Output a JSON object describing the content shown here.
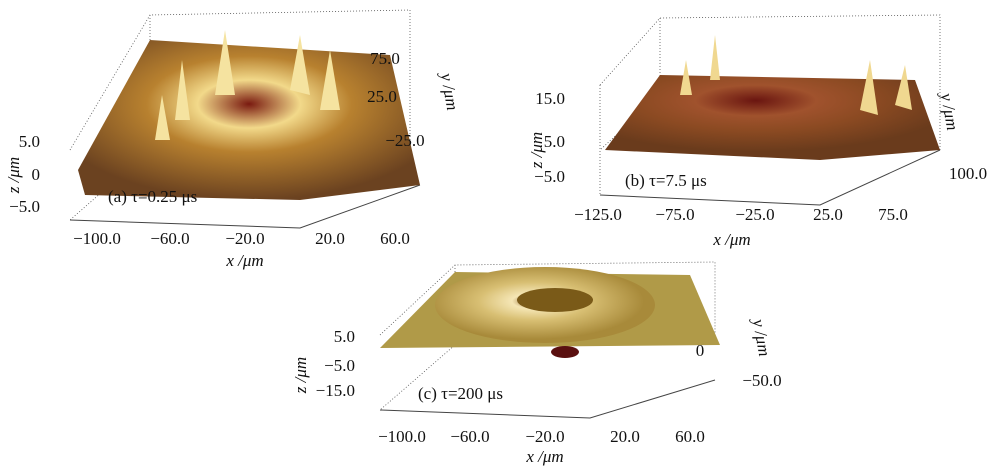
{
  "panels": [
    {
      "label": "(a) τ=0.25 μs",
      "x_label": "x /μm",
      "y_label": "y /μm",
      "z_label": "z /μm",
      "x_ticks": [
        "−100.0",
        "−60.0",
        "−20.0",
        "20.0",
        "60.0"
      ],
      "y_ticks": [
        "75.0",
        "25.0",
        "−25.0"
      ],
      "z_ticks": [
        "5.0",
        "0",
        "−5.0"
      ]
    },
    {
      "label": "(b) τ=7.5 μs",
      "x_label": "x /μm",
      "y_label": "y /μm",
      "z_label": "z /μm",
      "x_ticks": [
        "−125.0",
        "−75.0",
        "−25.0",
        "25.0",
        "75.0"
      ],
      "y_ticks": [
        "100.0"
      ],
      "z_ticks": [
        "15.0",
        "5.0",
        "−5.0"
      ]
    },
    {
      "label": "(c) τ=200 μs",
      "x_label": "x /μm",
      "y_label": "y /μm",
      "z_label": "z /μm",
      "x_ticks": [
        "−100.0",
        "−60.0",
        "−20.0",
        "20.0",
        "60.0"
      ],
      "y_ticks": [
        "0",
        "−50.0"
      ],
      "z_ticks": [
        "5.0",
        "−5.0",
        "−15.0"
      ]
    }
  ]
}
